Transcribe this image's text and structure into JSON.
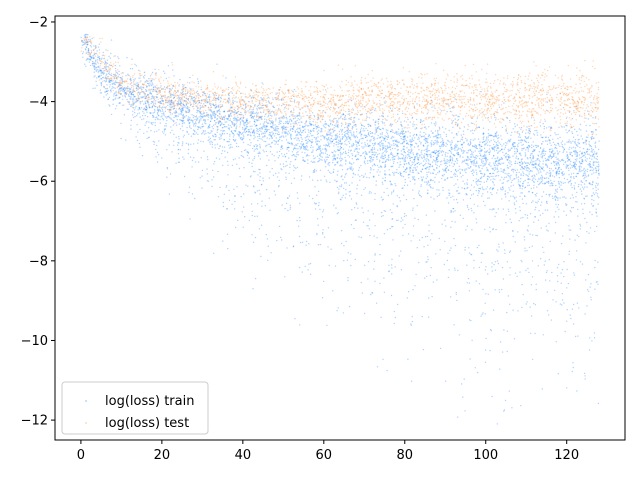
{
  "chart_data": {
    "type": "scatter",
    "title": "",
    "xlabel": "",
    "ylabel": "",
    "xlim": [
      -6.4,
      134.4
    ],
    "ylim": [
      -12.5,
      -1.85
    ],
    "x_ticks": [
      0,
      20,
      40,
      60,
      80,
      100,
      120
    ],
    "y_ticks": [
      -2,
      -4,
      -6,
      -8,
      -10,
      -12
    ],
    "x_tick_labels": [
      "0",
      "20",
      "40",
      "60",
      "80",
      "100",
      "120"
    ],
    "y_tick_labels": [
      "−2",
      "−4",
      "−6",
      "−8",
      "−10",
      "−12"
    ],
    "grid": false,
    "legend_position": "lower-left",
    "series": [
      {
        "name": "log(loss) train",
        "color": "#1a80ff",
        "x_range": [
          0,
          128
        ],
        "trend_x": [
          0,
          2,
          5,
          10,
          20,
          40,
          60,
          80,
          100,
          128
        ],
        "trend_y": [
          -2.4,
          -2.7,
          -3.2,
          -3.6,
          -4.0,
          -4.5,
          -4.9,
          -5.2,
          -5.4,
          -5.5
        ],
        "low_spread_y": [
          -2.4,
          -2.9,
          -3.8,
          -4.5,
          -5.5,
          -7.0,
          -8.5,
          -9.5,
          -10.2,
          -10.8
        ]
      },
      {
        "name": "log(loss) test",
        "color": "#ff8c33",
        "x_range": [
          0,
          128
        ],
        "trend_x": [
          0,
          2,
          5,
          10,
          20,
          40,
          60,
          80,
          100,
          128
        ],
        "trend_y": [
          -2.4,
          -2.6,
          -3.0,
          -3.5,
          -3.8,
          -4.0,
          -4.0,
          -3.9,
          -3.9,
          -3.9
        ],
        "low_spread_y": [
          -2.4,
          -2.7,
          -3.2,
          -3.7,
          -4.0,
          -4.3,
          -4.4,
          -4.4,
          -4.4,
          -4.4
        ]
      }
    ]
  }
}
